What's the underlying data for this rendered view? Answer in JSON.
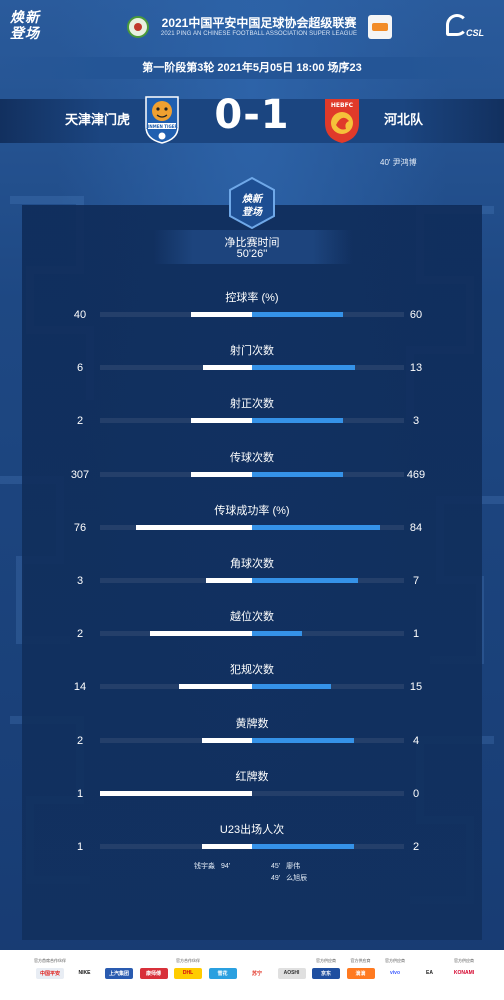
{
  "header": {
    "brand_line1": "焕新",
    "brand_line2": "登场",
    "league_title": "2021中国平安中国足球协会超级联赛",
    "league_subtitle": "2021 PING AN CHINESE FOOTBALL ASSOCIATION SUPER LEAGUE",
    "csl_text": "CSL",
    "match_info": "第一阶段第3轮  2021年5月05日 18:00 场序23"
  },
  "match": {
    "home_team": "天津津门虎",
    "away_team": "河北队",
    "home_crest_text": "JINMEN TIGER",
    "away_crest_text": "HEBFC",
    "score": "0-1",
    "goal_event": "40'  尹鸿博"
  },
  "emblem": {
    "line1": "焕新",
    "line2": "登场"
  },
  "stats": {
    "time_label": "净比赛时间",
    "time_value": "50'26''",
    "rows": [
      {
        "label": "控球率 (%)",
        "home": "40",
        "away": "60",
        "home_frac": 0.4,
        "away_frac": 0.6
      },
      {
        "label": "射门次数",
        "home": "6",
        "away": "13",
        "home_frac": 0.32,
        "away_frac": 0.68
      },
      {
        "label": "射正次数",
        "home": "2",
        "away": "3",
        "home_frac": 0.4,
        "away_frac": 0.6
      },
      {
        "label": "传球次数",
        "home": "307",
        "away": "469",
        "home_frac": 0.4,
        "away_frac": 0.6
      },
      {
        "label": "传球成功率 (%)",
        "home": "76",
        "away": "84",
        "home_frac": 0.76,
        "away_frac": 0.84
      },
      {
        "label": "角球次数",
        "home": "3",
        "away": "7",
        "home_frac": 0.3,
        "away_frac": 0.7
      },
      {
        "label": "越位次数",
        "home": "2",
        "away": "1",
        "home_frac": 0.67,
        "away_frac": 0.33
      },
      {
        "label": "犯规次数",
        "home": "14",
        "away": "15",
        "home_frac": 0.48,
        "away_frac": 0.52
      },
      {
        "label": "黄牌数",
        "home": "2",
        "away": "4",
        "home_frac": 0.33,
        "away_frac": 0.67
      },
      {
        "label": "红牌数",
        "home": "1",
        "away": "0",
        "home_frac": 1.0,
        "away_frac": 0.0
      },
      {
        "label": "U23出场人次",
        "home": "1",
        "away": "2",
        "home_frac": 0.33,
        "away_frac": 0.67
      }
    ],
    "u23_home": [
      {
        "name": "钱宇淼",
        "minute": "94'"
      }
    ],
    "u23_away": [
      {
        "minute": "45'",
        "name": "廖伟"
      },
      {
        "minute": "49'",
        "name": "么旭辰"
      }
    ]
  },
  "footer": {
    "sponsors": [
      {
        "caption": "官方首席合作伙伴",
        "name": "中国平安"
      },
      {
        "caption": "",
        "name": "NIKE"
      },
      {
        "caption": "",
        "name": "上汽集团"
      },
      {
        "caption": "",
        "name": "康师傅"
      },
      {
        "caption": "官方合作伙伴",
        "name": "DHL"
      },
      {
        "caption": "",
        "name": "雪花"
      },
      {
        "caption": "",
        "name": "苏宁"
      },
      {
        "caption": "",
        "name": "AOSHI"
      },
      {
        "caption": "官方供应商",
        "name": "京东"
      },
      {
        "caption": "官方供应商",
        "name": "滴滴"
      },
      {
        "caption": "官方供应商",
        "name": "vivo"
      },
      {
        "caption": "",
        "name": "EA"
      },
      {
        "caption": "官方供应商",
        "name": "KONAMI"
      }
    ]
  },
  "colors": {
    "background": "#1e4883",
    "panel": "#0f2c5a",
    "home_bar": "#ffffff",
    "away_bar": "#3592e8",
    "track": "#243f6a"
  }
}
